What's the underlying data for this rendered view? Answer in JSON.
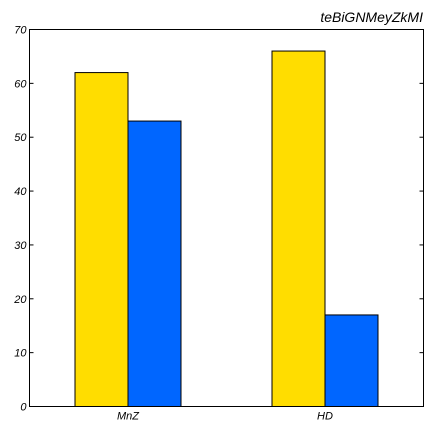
{
  "chart_data": {
    "type": "bar",
    "title": "teBiGNMeyZkMI",
    "xlabel": "",
    "ylabel": "",
    "categories": [
      "MnZ",
      "HD"
    ],
    "series": [
      {
        "values": [
          62,
          66
        ],
        "color": "#FFDD00"
      },
      {
        "values": [
          53,
          17
        ],
        "color": "#0066FF"
      }
    ],
    "ylim": [
      0,
      70
    ],
    "yticks": [
      0,
      10,
      20,
      30,
      40,
      50,
      60,
      70
    ],
    "grid": false,
    "legend": "none"
  }
}
